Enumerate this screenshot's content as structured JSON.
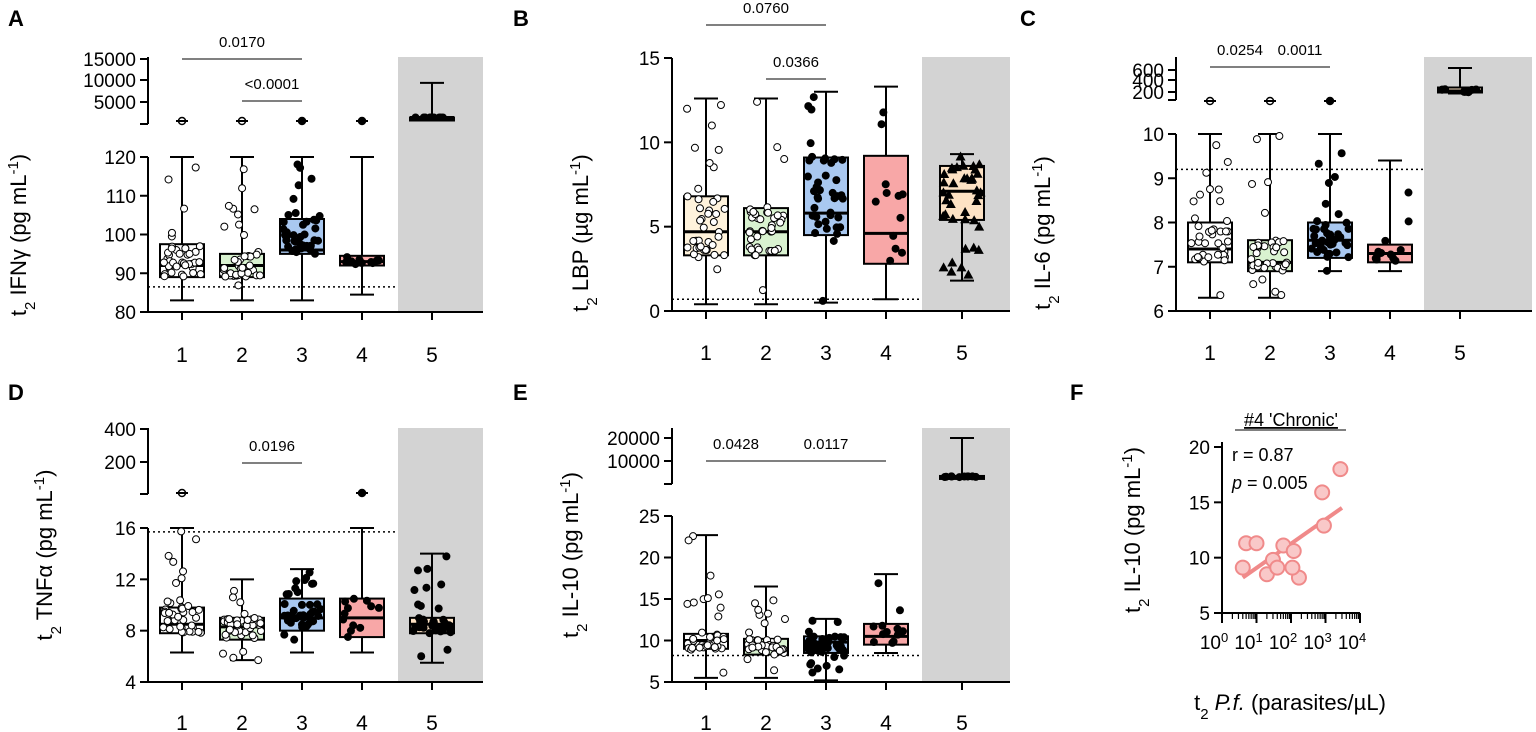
{
  "chart_data": [
    {
      "panel": "A",
      "type": "box",
      "ylabel": "t2 IFNγ (pg mL-1)",
      "categories": [
        "1",
        "2",
        "3",
        "4",
        "5"
      ],
      "upper_ticks": [
        "15000",
        "10000",
        "5000"
      ],
      "lower_ticks": [
        "120",
        "110",
        "100",
        "90",
        "80"
      ],
      "lower_ylim": [
        80,
        120
      ],
      "reference_line": 86.5,
      "groups": [
        {
          "median": 92,
          "q1": 89,
          "q3": 97.5,
          "min": 83,
          "max": 120,
          "color": "#ffffff"
        },
        {
          "median": 92,
          "q1": 89,
          "q3": 95,
          "min": 83,
          "max": 120,
          "color": "#d9f2d0"
        },
        {
          "median": 96,
          "q1": 95,
          "q3": 104,
          "min": 83,
          "max": 120,
          "color": "#a9c8f0"
        },
        {
          "median": 93,
          "q1": 92,
          "q3": 94.5,
          "min": 84.5,
          "max": 120,
          "color": "#f8a7a7"
        },
        {
          "median": 1500,
          "q1": 1500,
          "q3": 1500,
          "min": 1500,
          "max": 9500,
          "color": "#000000",
          "upper_only": true
        }
      ],
      "pvalues": [
        {
          "label": "0.0170",
          "from": "1",
          "to": "3"
        },
        {
          "label": "<0.0001",
          "from": "2",
          "to": "3"
        }
      ]
    },
    {
      "panel": "B",
      "type": "box",
      "ylabel": "t2 LBP (µg mL-1)",
      "categories": [
        "1",
        "2",
        "3",
        "4",
        "5"
      ],
      "ticks": [
        "15",
        "10",
        "5",
        "0"
      ],
      "ylim": [
        0,
        15
      ],
      "reference_line": 0.7,
      "groups": [
        {
          "median": 4.7,
          "q1": 3.3,
          "q3": 6.8,
          "min": 0.4,
          "max": 12.6,
          "color": "#fff3dc"
        },
        {
          "median": 4.7,
          "q1": 3.3,
          "q3": 6.1,
          "min": 0.4,
          "max": 12.6,
          "color": "#d9f2d0"
        },
        {
          "median": 5.8,
          "q1": 4.5,
          "q3": 9.1,
          "min": 0.5,
          "max": 13.0,
          "color": "#a9c8f0"
        },
        {
          "median": 4.6,
          "q1": 2.8,
          "q3": 9.2,
          "min": 0.7,
          "max": 13.3,
          "color": "#f8a7a7"
        },
        {
          "median": 7.1,
          "q1": 5.4,
          "q3": 8.6,
          "min": 1.8,
          "max": 9.3,
          "color": "#fde2c4"
        }
      ],
      "pvalues": [
        {
          "label": "0.0760",
          "from": "1",
          "to": "3"
        },
        {
          "label": "0.0366",
          "from": "2",
          "to": "3"
        }
      ]
    },
    {
      "panel": "C",
      "type": "box",
      "ylabel": "t2 IL-6 (pg mL-1)",
      "categories": [
        "1",
        "2",
        "3",
        "4",
        "5"
      ],
      "upper_ticks": [
        "600",
        "400",
        "200"
      ],
      "lower_ticks": [
        "10",
        "9",
        "8",
        "7",
        "6"
      ],
      "lower_ylim": [
        6,
        10
      ],
      "reference_line": 9.2,
      "groups": [
        {
          "median": 7.4,
          "q1": 7.1,
          "q3": 8.0,
          "min": 6.3,
          "max": 10,
          "color": "#ffffff"
        },
        {
          "median": 7.1,
          "q1": 6.9,
          "q3": 7.6,
          "min": 6.3,
          "max": 10,
          "color": "#d9f2d0"
        },
        {
          "median": 7.6,
          "q1": 7.2,
          "q3": 8.0,
          "min": 6.9,
          "max": 10,
          "color": "#a9c8f0"
        },
        {
          "median": 7.3,
          "q1": 7.1,
          "q3": 7.5,
          "min": 6.9,
          "max": 9.4,
          "color": "#f8a7a7"
        },
        {
          "median": 180,
          "q1": 150,
          "q3": 250,
          "min": 130,
          "max": 640,
          "color": "#fde2c4",
          "upper_only": true
        }
      ],
      "pvalues": [
        {
          "label": "0.0254",
          "from": "1",
          "to": "2"
        },
        {
          "label": "0.0011",
          "from": "2",
          "to": "3"
        }
      ]
    },
    {
      "panel": "D",
      "type": "box",
      "ylabel": "t2 TNFα (pg mL-1)",
      "categories": [
        "1",
        "2",
        "3",
        "4",
        "5"
      ],
      "upper_ticks": [
        "400",
        "200"
      ],
      "lower_ticks": [
        "16",
        "12",
        "8",
        "4"
      ],
      "lower_ylim": [
        4,
        16
      ],
      "reference_line": 15.7,
      "groups": [
        {
          "median": 8.5,
          "q1": 7.8,
          "q3": 9.8,
          "min": 6.3,
          "max": 16,
          "color": "#ffffff"
        },
        {
          "median": 8.3,
          "q1": 7.3,
          "q3": 9.0,
          "min": 5.7,
          "max": 12,
          "color": "#d9f2d0"
        },
        {
          "median": 9.0,
          "q1": 8.0,
          "q3": 10.5,
          "min": 6.3,
          "max": 12.8,
          "color": "#a9c8f0"
        },
        {
          "median": 9.0,
          "q1": 7.5,
          "q3": 10.5,
          "min": 6.3,
          "max": 16,
          "color": "#f8a7a7"
        },
        {
          "median": 8.5,
          "q1": 7.8,
          "q3": 9.0,
          "min": 5.5,
          "max": 14.0,
          "color": "#fde2c4"
        }
      ],
      "pvalues": [
        {
          "label": "0.0196",
          "from": "2",
          "to": "3"
        }
      ]
    },
    {
      "panel": "E",
      "type": "box",
      "ylabel": "t2 IL-10 (pg mL-1)",
      "categories": [
        "1",
        "2",
        "3",
        "4",
        "5"
      ],
      "upper_ticks": [
        "20000",
        "10000"
      ],
      "lower_ticks": [
        "25",
        "20",
        "15",
        "10",
        "5"
      ],
      "lower_ylim": [
        5,
        25
      ],
      "reference_line": 8.2,
      "groups": [
        {
          "median": 10,
          "q1": 9,
          "q3": 10.8,
          "min": 5.5,
          "max": 22.7,
          "color": "#ffffff"
        },
        {
          "median": 9,
          "q1": 8.3,
          "q3": 10.2,
          "min": 5.5,
          "max": 16.5,
          "color": "#d9f2d0"
        },
        {
          "median": 9.8,
          "q1": 8.5,
          "q3": 10.5,
          "min": 5.2,
          "max": 12.6,
          "color": "#a9c8f0"
        },
        {
          "median": 10.5,
          "q1": 9.5,
          "q3": 12,
          "min": 8.5,
          "max": 18,
          "color": "#f8a7a7"
        },
        {
          "median": 3000,
          "q1": 3000,
          "q3": 3500,
          "min": 2500,
          "max": 20000,
          "color": "#fde2c4",
          "upper_only": true
        }
      ],
      "pvalues": [
        {
          "label": "0.0428",
          "from": "1",
          "to": "2"
        },
        {
          "label": "0.0117",
          "from": "2",
          "to": "4"
        }
      ]
    },
    {
      "panel": "F",
      "type": "scatter",
      "title": "#4 'Chronic'",
      "ylabel": "t2 IL-10 (pg mL-1)",
      "xlabel": "t2 P.f. (parasites/µL)",
      "x_scale": "log",
      "xlim": [
        1,
        10000
      ],
      "ylim": [
        5,
        20
      ],
      "x_ticks": [
        "10^0",
        "10^1",
        "10^2",
        "10^3",
        "10^4"
      ],
      "y_ticks": [
        "20",
        "15",
        "10",
        "5"
      ],
      "r_label": "r = 0.87",
      "p_prefix": "p",
      "p_value": " = 0.005",
      "points": [
        {
          "x": 4,
          "y": 9.1
        },
        {
          "x": 5,
          "y": 11.3
        },
        {
          "x": 10,
          "y": 11.3
        },
        {
          "x": 20,
          "y": 8.5
        },
        {
          "x": 30,
          "y": 9.8
        },
        {
          "x": 40,
          "y": 9.1
        },
        {
          "x": 60,
          "y": 11.1
        },
        {
          "x": 120,
          "y": 10.6
        },
        {
          "x": 170,
          "y": 8.2
        },
        {
          "x": 110,
          "y": 9.1
        },
        {
          "x": 800,
          "y": 15.9
        },
        {
          "x": 900,
          "y": 12.9
        },
        {
          "x": 2700,
          "y": 18.0
        }
      ],
      "fit_line": {
        "x": [
          4,
          3000
        ],
        "y": [
          8.2,
          14.5
        ]
      },
      "color": "#f08a8a"
    }
  ]
}
